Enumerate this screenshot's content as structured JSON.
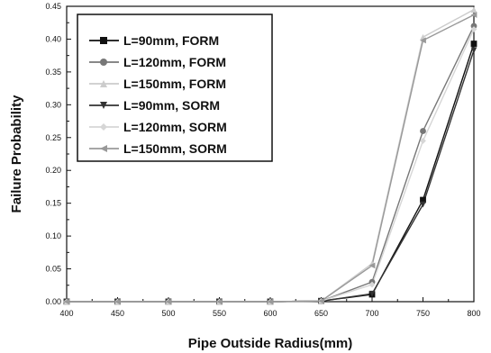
{
  "chart_data": {
    "type": "line",
    "xlabel": "Pipe Outside Radius(mm)",
    "ylabel": "Failure Probability",
    "xlim": [
      400,
      800
    ],
    "ylim": [
      0,
      0.45
    ],
    "x_ticks": [
      "400",
      "450",
      "500",
      "550",
      "600",
      "650",
      "700",
      "750",
      "800"
    ],
    "y_ticks": [
      "0.00",
      "0.05",
      "0.10",
      "0.15",
      "0.20",
      "0.25",
      "0.30",
      "0.35",
      "0.40",
      "0.45"
    ],
    "x": [
      400,
      450,
      500,
      550,
      600,
      650,
      700,
      750,
      800
    ],
    "legend_position": "top-left",
    "grid": false,
    "series": [
      {
        "name": "L=90mm, FORM",
        "marker": "square",
        "color": "#111111",
        "values": [
          0,
          0,
          0,
          0,
          0,
          0.001,
          0.011,
          0.155,
          0.393
        ]
      },
      {
        "name": "L=120mm, FORM",
        "marker": "circle",
        "color": "#777777",
        "values": [
          0,
          0,
          0,
          0,
          0,
          0.001,
          0.03,
          0.26,
          0.42
        ]
      },
      {
        "name": "L=150mm, FORM",
        "marker": "triangle-up",
        "color": "#cccccc",
        "values": [
          0,
          0,
          0,
          0,
          0,
          0.001,
          0.058,
          0.403,
          0.445
        ]
      },
      {
        "name": "L=90mm, SORM",
        "marker": "triangle-down",
        "color": "#333333",
        "values": [
          0,
          0,
          0,
          0,
          0,
          0.001,
          0.012,
          0.148,
          0.383
        ]
      },
      {
        "name": "L=120mm, SORM",
        "marker": "diamond",
        "color": "#d6d6d6",
        "values": [
          0,
          0,
          0,
          0,
          0,
          0.001,
          0.026,
          0.245,
          0.415
        ]
      },
      {
        "name": "L=150mm, SORM",
        "marker": "triangle-left",
        "color": "#999999",
        "values": [
          0,
          0,
          0,
          0,
          0,
          0.001,
          0.055,
          0.398,
          0.437
        ]
      }
    ]
  }
}
